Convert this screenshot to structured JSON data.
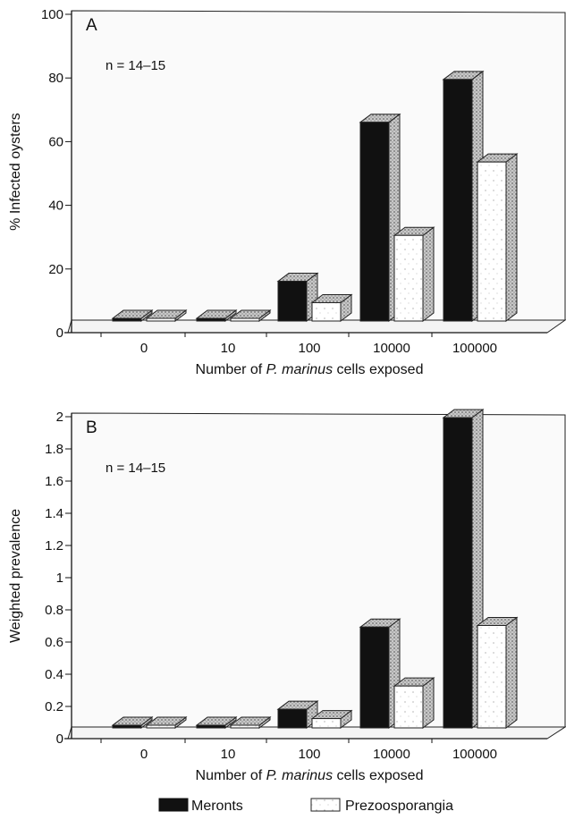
{
  "figure": {
    "legend": [
      {
        "label": "Meronts",
        "color": "#111111"
      },
      {
        "label": "Prezoosporangia",
        "color": "#ffffff"
      }
    ]
  },
  "chart_data": [
    {
      "type": "bar",
      "panel_label": "A",
      "annotation": "n = 14–15",
      "title": "",
      "xlabel_prefix": "Number of ",
      "xlabel_italic": "P. marinus",
      "xlabel_suffix": " cells exposed",
      "ylabel": "% Infected oysters",
      "categories": [
        "0",
        "10",
        "100",
        "10000",
        "100000"
      ],
      "series": [
        {
          "name": "Meronts",
          "values": [
            0,
            0,
            13,
            65,
            79
          ]
        },
        {
          "name": "Prezoosporangia",
          "values": [
            0,
            0,
            6,
            28,
            52
          ]
        }
      ],
      "ylim": [
        0,
        100
      ],
      "yticks": [
        0,
        20,
        40,
        60,
        80,
        100
      ],
      "ytick_labels": [
        "0",
        "20",
        "40",
        "60",
        "80",
        "100"
      ],
      "grid": false,
      "legend_position": "bottom"
    },
    {
      "type": "bar",
      "panel_label": "B",
      "annotation": "n = 14–15",
      "title": "",
      "xlabel_prefix": "Number of ",
      "xlabel_italic": "P. marinus",
      "xlabel_suffix": " cells exposed",
      "ylabel": "Weighted prevalence",
      "categories": [
        "0",
        "10",
        "100",
        "10000",
        "100000"
      ],
      "series": [
        {
          "name": "Meronts",
          "values": [
            0,
            0,
            0.12,
            0.65,
            2.0
          ]
        },
        {
          "name": "Prezoosporangia",
          "values": [
            0,
            0,
            0.06,
            0.27,
            0.66
          ]
        }
      ],
      "ylim": [
        0,
        2
      ],
      "yticks": [
        0,
        0.2,
        0.4,
        0.6,
        0.8,
        1,
        1.2,
        1.4,
        1.6,
        1.8,
        2
      ],
      "ytick_labels": [
        "0",
        "0.2",
        "0.4",
        "0.6",
        "0.8",
        "1",
        "1.2",
        "1.4",
        "1.6",
        "1.8",
        "2"
      ],
      "grid": false,
      "legend_position": "bottom"
    }
  ]
}
